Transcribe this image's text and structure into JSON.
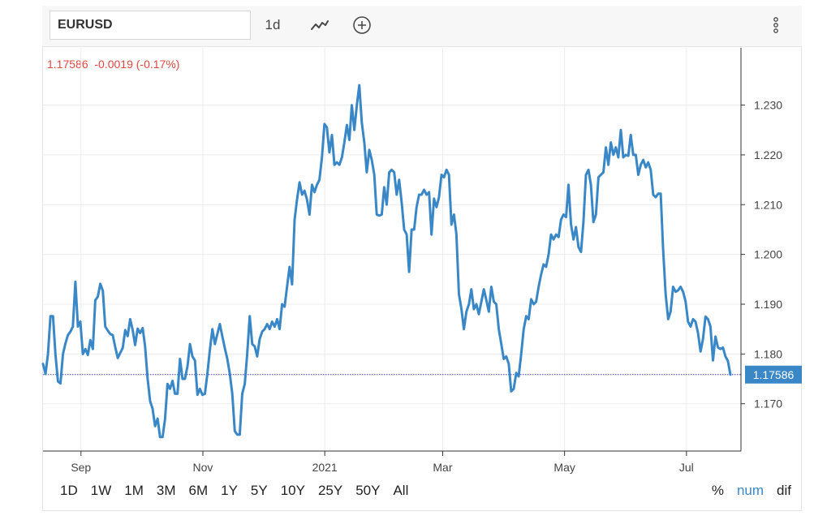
{
  "toolbar": {
    "symbol": "EURUSD",
    "interval": "1d",
    "icons": [
      "line-chart-icon",
      "add-circle-icon",
      "more-vertical-icon"
    ]
  },
  "quote": {
    "price": "1.17586",
    "change": "-0.0019",
    "change_pct": "(-0.17%)",
    "color": "#e0473f"
  },
  "price_tag": "1.17586",
  "ranges": [
    "1D",
    "1W",
    "1M",
    "3M",
    "6M",
    "1Y",
    "5Y",
    "10Y",
    "25Y",
    "50Y",
    "All"
  ],
  "scales": [
    "%",
    "num",
    "dif"
  ],
  "active_scale": "num",
  "colors": {
    "line": "#3a87c8",
    "last_line": "#3b3bb3",
    "tag_bg": "#3a87c8",
    "grid": "#ececec"
  },
  "chart_data": {
    "type": "line",
    "title": "",
    "xlabel": "",
    "ylabel": "",
    "x_start": "2020-08-13",
    "x_end": "2021-07-23",
    "x_ticks": [
      {
        "label": "Sep",
        "date": "2020-09-01"
      },
      {
        "label": "Nov",
        "date": "2020-11-01"
      },
      {
        "label": "2021",
        "date": "2021-01-01"
      },
      {
        "label": "Mar",
        "date": "2021-03-01"
      },
      {
        "label": "May",
        "date": "2021-05-01"
      },
      {
        "label": "Jul",
        "date": "2021-07-01"
      }
    ],
    "y_ticks": [
      "1.170",
      "1.180",
      "1.190",
      "1.200",
      "1.210",
      "1.220",
      "1.230"
    ],
    "ylim": [
      1.1605,
      1.2415
    ],
    "grid": true,
    "last_value": 1.17586,
    "series": [
      {
        "values": [
          1.178,
          1.176,
          1.18,
          1.1876,
          1.1876,
          1.18,
          1.1745,
          1.1741,
          1.18,
          1.1821,
          1.1838,
          1.1845,
          1.1855,
          1.1945,
          1.1855,
          1.1865,
          1.18,
          1.181,
          1.1798,
          1.1828,
          1.181,
          1.1908,
          1.1915,
          1.1941,
          1.1927,
          1.1855,
          1.1847,
          1.184,
          1.1838,
          1.1814,
          1.1792,
          1.1802,
          1.1812,
          1.1848,
          1.1836,
          1.187,
          1.1848,
          1.1818,
          1.1851,
          1.1842,
          1.1852,
          1.1815,
          1.175,
          1.1705,
          1.169,
          1.1655,
          1.167,
          1.1633,
          1.1633,
          1.167,
          1.174,
          1.173,
          1.1746,
          1.172,
          1.172,
          1.179,
          1.175,
          1.175,
          1.1775,
          1.182,
          1.1795,
          1.1787,
          1.1718,
          1.173,
          1.1718,
          1.172,
          1.176,
          1.1808,
          1.185,
          1.182,
          1.184,
          1.186,
          1.1835,
          1.1812,
          1.179,
          1.176,
          1.172,
          1.1645,
          1.1638,
          1.1638,
          1.172,
          1.174,
          1.18,
          1.1876,
          1.182,
          1.1815,
          1.1795,
          1.183,
          1.1845,
          1.185,
          1.186,
          1.185,
          1.1865,
          1.1855,
          1.187,
          1.185,
          1.19,
          1.1895,
          1.1935,
          1.1975,
          1.194,
          1.207,
          1.211,
          1.2145,
          1.212,
          1.2128,
          1.211,
          1.208,
          1.214,
          1.2125,
          1.214,
          1.215,
          1.2195,
          1.2262,
          1.2255,
          1.2205,
          1.224,
          1.218,
          1.2185,
          1.218,
          1.2195,
          1.2225,
          1.226,
          1.223,
          1.23,
          1.225,
          1.23,
          1.234,
          1.2265,
          1.2225,
          1.2165,
          1.221,
          1.219,
          1.216,
          1.208,
          1.2078,
          1.208,
          1.2135,
          1.21,
          1.2165,
          1.217,
          1.2165,
          1.212,
          1.215,
          1.2105,
          1.205,
          1.204,
          1.1965,
          1.205,
          1.205,
          1.2095,
          1.212,
          1.212,
          1.213,
          1.212,
          1.2125,
          1.204,
          1.2112,
          1.2095,
          1.2115,
          1.216,
          1.2155,
          1.217,
          1.216,
          1.206,
          1.208,
          1.204,
          1.192,
          1.189,
          1.185,
          1.1885,
          1.19,
          1.193,
          1.189,
          1.19,
          1.188,
          1.1905,
          1.193,
          1.1908,
          1.1885,
          1.1935,
          1.1905,
          1.19,
          1.185,
          1.182,
          1.179,
          1.1795,
          1.178,
          1.1725,
          1.173,
          1.1762,
          1.1755,
          1.18,
          1.185,
          1.1876,
          1.187,
          1.191,
          1.19,
          1.1905,
          1.1935,
          1.196,
          1.198,
          1.1975,
          1.2,
          1.204,
          1.203,
          1.204,
          1.2035,
          1.207,
          1.208,
          1.2075,
          1.214,
          1.206,
          1.203,
          1.2055,
          1.2015,
          1.2005,
          1.2065,
          1.216,
          1.217,
          1.214,
          1.2065,
          1.208,
          1.2155,
          1.216,
          1.2165,
          1.2215,
          1.218,
          1.2225,
          1.22,
          1.2215,
          1.2195,
          1.225,
          1.2195,
          1.22,
          1.2198,
          1.224,
          1.22,
          1.22,
          1.216,
          1.218,
          1.219,
          1.2175,
          1.2185,
          1.217,
          1.212,
          1.2115,
          1.2122,
          1.2122,
          1.201,
          1.192,
          1.187,
          1.1885,
          1.1935,
          1.1925,
          1.1928,
          1.1935,
          1.1925,
          1.1905,
          1.1865,
          1.1855,
          1.187,
          1.1865,
          1.1842,
          1.1805,
          1.183,
          1.1875,
          1.187,
          1.1855,
          1.1787,
          1.1835,
          1.1813,
          1.181,
          1.1813,
          1.1795,
          1.1786,
          1.17586
        ]
      }
    ]
  }
}
